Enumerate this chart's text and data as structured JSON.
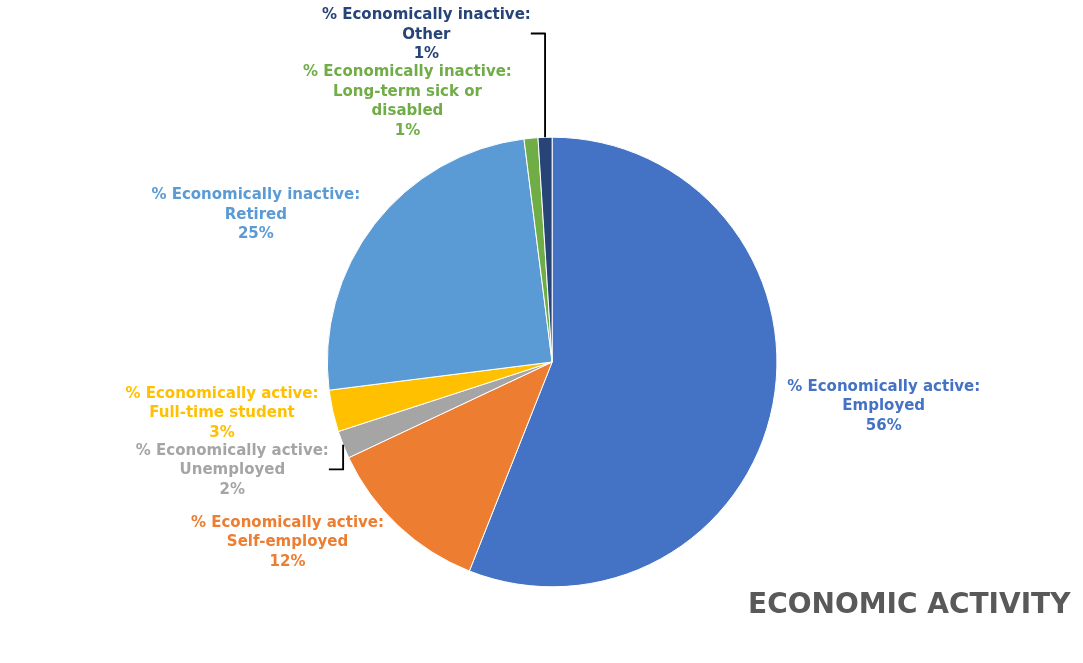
{
  "chart_data": {
    "type": "pie",
    "title": "ECONOMIC ACTIVITY",
    "categories": [
      "% Economically active: Employed",
      "% Economically active: Self-employed",
      "% Economically active: Unemployed",
      "% Economically active: Full-time student",
      "% Economically inactive: Retired",
      "% Economically inactive: Long-term sick or disabled",
      "% Economically inactive: Other"
    ],
    "values": [
      56,
      12,
      2,
      3,
      25,
      1,
      1
    ],
    "colors": [
      "#4472c4",
      "#ed7d31",
      "#a5a5a5",
      "#ffc000",
      "#5b9bd5",
      "#70ad47",
      "#264478"
    ],
    "value_labels": [
      "56%",
      "12%",
      "2%",
      "3%",
      "25%",
      "1%",
      "1%"
    ],
    "legend": false
  }
}
